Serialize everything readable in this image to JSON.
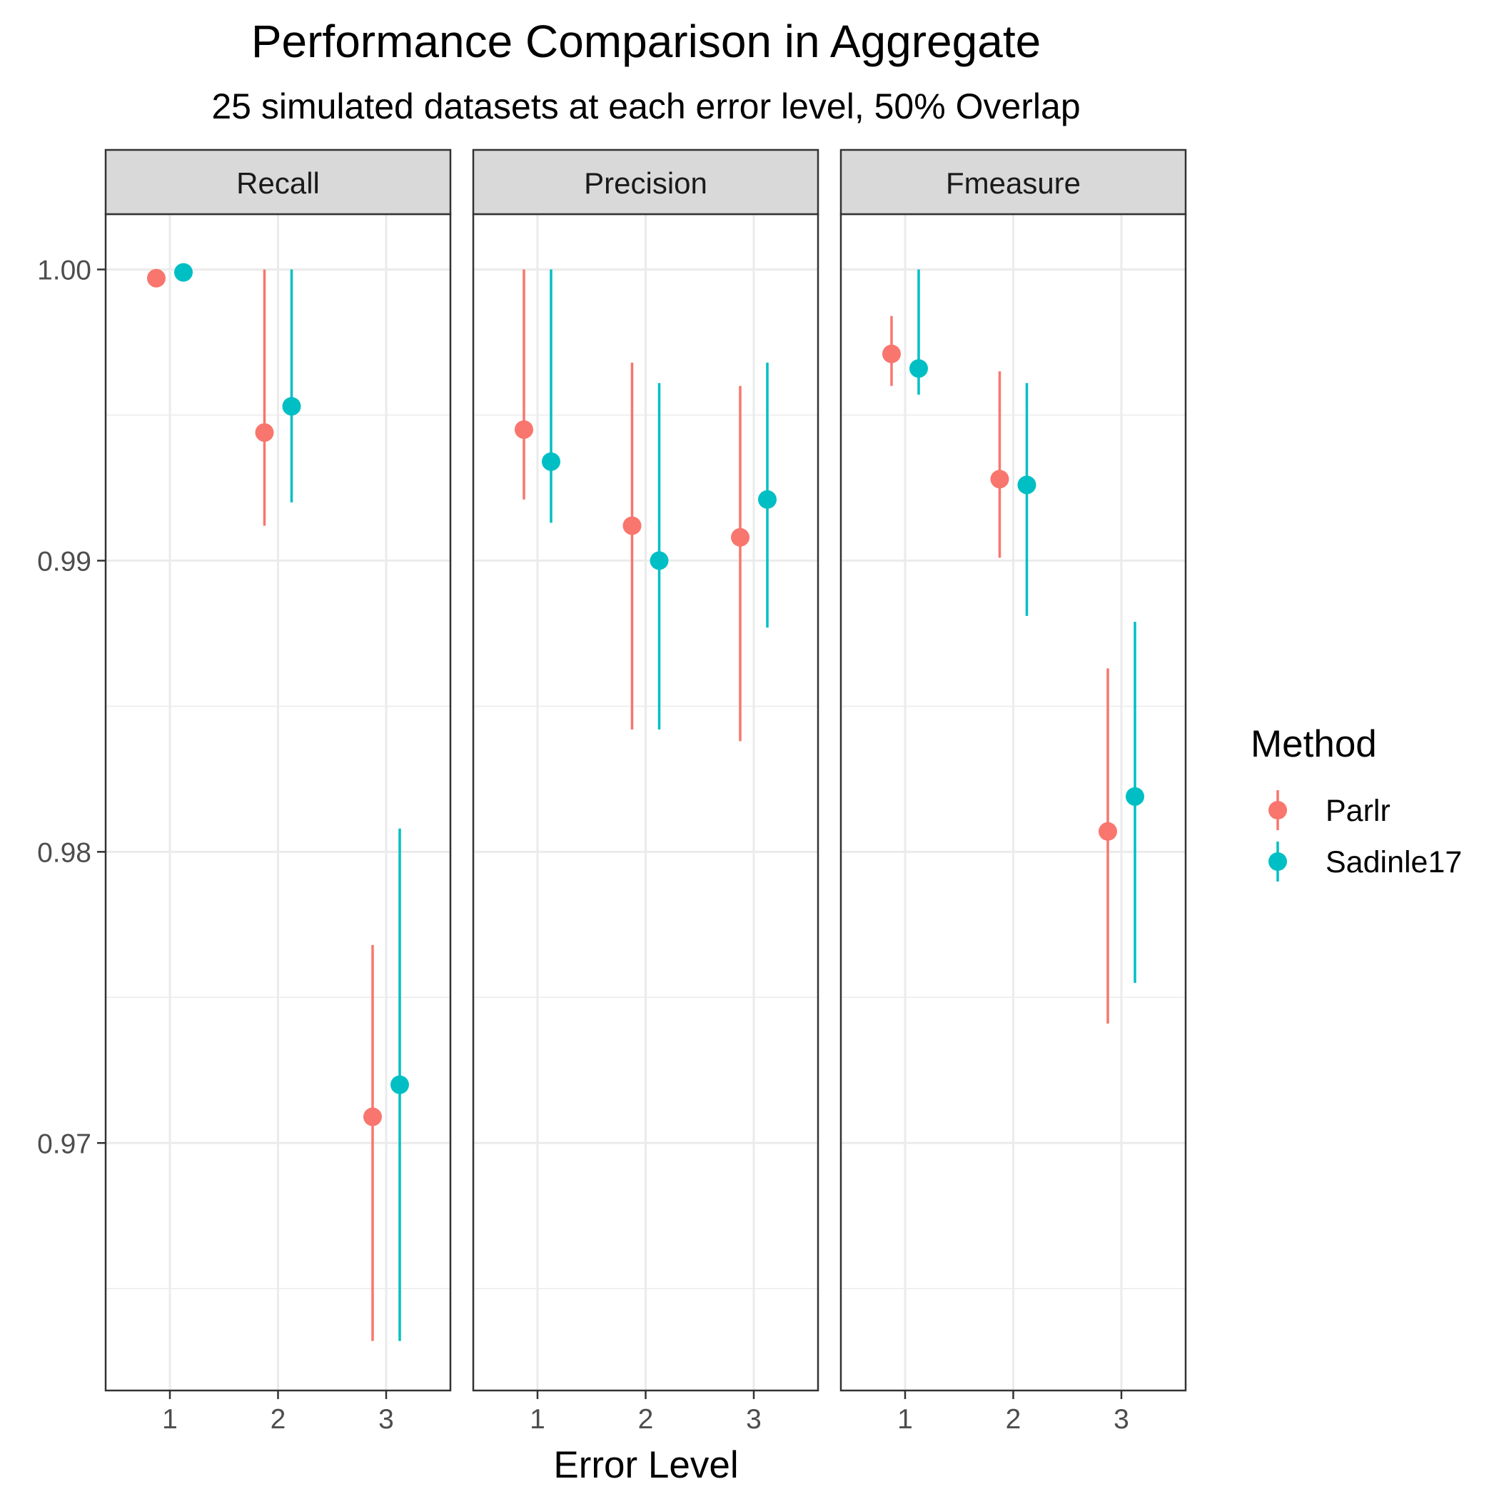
{
  "chart_data": {
    "type": "scatter",
    "title": "Performance Comparison in Aggregate",
    "subtitle": "25 simulated datasets at each error level, 50% Overlap",
    "xlabel": "Error Level",
    "ylabel": "",
    "x_ticks": [
      "1",
      "2",
      "3"
    ],
    "y_ticks": [
      0.97,
      0.98,
      0.99,
      1.0
    ],
    "y_tick_labels": [
      "0.97",
      "0.98",
      "0.99",
      "1.00"
    ],
    "ylim": [
      0.9615,
      1.0019
    ],
    "grid": true,
    "legend_position": "right",
    "legend": {
      "title": "Method",
      "entries": [
        {
          "label": "Parlr",
          "color": "#F8766D"
        },
        {
          "label": "Sadinle17",
          "color": "#00BFC4"
        }
      ]
    },
    "facets": [
      {
        "label": "Recall",
        "series": [
          {
            "name": "Parlr",
            "x": [
              1,
              2,
              3
            ],
            "y": [
              0.9997,
              0.9944,
              0.9709
            ],
            "ymin": [
              null,
              0.9912,
              0.9632
            ],
            "ymax": [
              null,
              1.0,
              0.9768
            ]
          },
          {
            "name": "Sadinle17",
            "x": [
              1,
              2,
              3
            ],
            "y": [
              0.9999,
              0.9953,
              0.972
            ],
            "ymin": [
              null,
              0.992,
              0.9632
            ],
            "ymax": [
              null,
              1.0,
              0.9808
            ]
          }
        ]
      },
      {
        "label": "Precision",
        "series": [
          {
            "name": "Parlr",
            "x": [
              1,
              2,
              3
            ],
            "y": [
              0.9945,
              0.9912,
              0.9908
            ],
            "ymin": [
              0.9921,
              0.9842,
              0.9838
            ],
            "ymax": [
              1.0,
              0.9968,
              0.996
            ]
          },
          {
            "name": "Sadinle17",
            "x": [
              1,
              2,
              3
            ],
            "y": [
              0.9934,
              0.99,
              0.9921
            ],
            "ymin": [
              0.9913,
              0.9842,
              0.9877
            ],
            "ymax": [
              1.0,
              0.9961,
              0.9968
            ]
          }
        ]
      },
      {
        "label": "Fmeasure",
        "series": [
          {
            "name": "Parlr",
            "x": [
              1,
              2,
              3
            ],
            "y": [
              0.9971,
              0.9928,
              0.9807
            ],
            "ymin": [
              0.996,
              0.9901,
              0.9741
            ],
            "ymax": [
              0.9984,
              0.9965,
              0.9863
            ]
          },
          {
            "name": "Sadinle17",
            "x": [
              1,
              2,
              3
            ],
            "y": [
              0.9966,
              0.9926,
              0.9819
            ],
            "ymin": [
              0.9957,
              0.9881,
              0.9755
            ],
            "ymax": [
              1.0,
              0.9961,
              0.9879
            ]
          }
        ]
      }
    ]
  }
}
